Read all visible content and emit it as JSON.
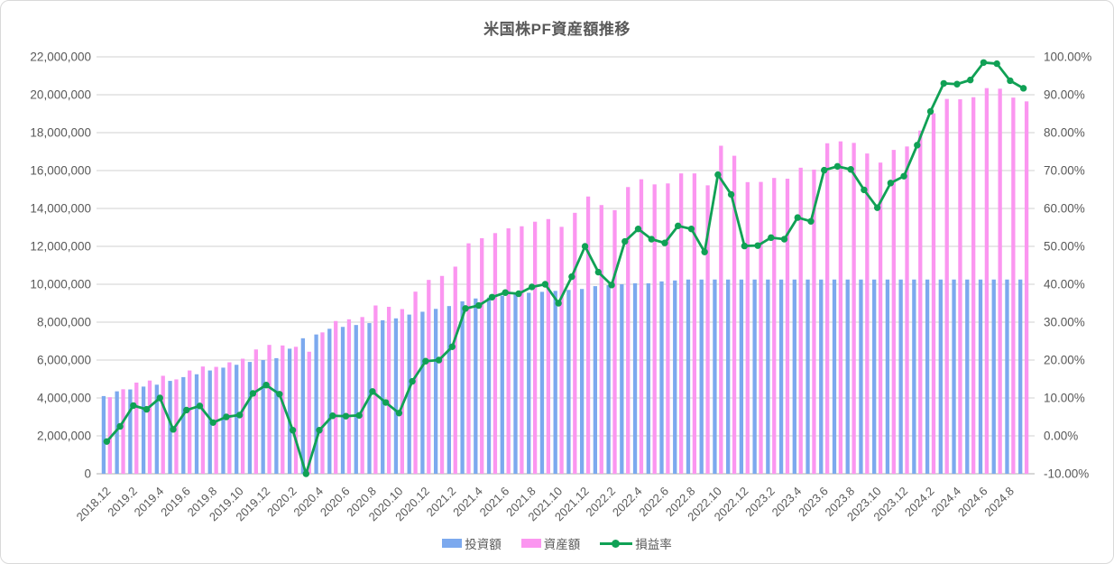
{
  "chart": {
    "title": "米国株PF資産額推移",
    "legend": {
      "invest": "投資額",
      "asset": "資産額",
      "rate": "損益率"
    }
  },
  "colors": {
    "invest_bar": "#7CA9EE",
    "asset_bar": "#FB96F0",
    "rate_line": "#10A155",
    "gridline": "#D9D9D9",
    "axis_line": "#BFBFBF",
    "tick_text": "#595959"
  },
  "chart_data": {
    "type": "combo: grouped bars + line on secondary axis",
    "title": "米国株PF資産額推移",
    "grid": true,
    "legend_position": "bottom",
    "categories": [
      "2018.12",
      "2019.1",
      "2019.2",
      "2019.3",
      "2019.4",
      "2019.5",
      "2019.6",
      "2019.7",
      "2019.8",
      "2019.9",
      "2019.10",
      "2019.11",
      "2019.12",
      "2020.1",
      "2020.2",
      "2020.3",
      "2020.4",
      "2020.5",
      "2020.6",
      "2020.7",
      "2020.8",
      "2020.9",
      "2020.10",
      "2020.11",
      "2020.12",
      "2021.1",
      "2021.2",
      "2021.3",
      "2021.4",
      "2021.5",
      "2021.6",
      "2021.7",
      "2021.8",
      "2021.9",
      "2021.10",
      "2021.11",
      "2021.12",
      "2022.1",
      "2022.2",
      "2022.3",
      "2022.4",
      "2022.5",
      "2022.6",
      "2022.7",
      "2022.8",
      "2022.9",
      "2022.10",
      "2022.11",
      "2022.12",
      "2023.1",
      "2023.2",
      "2023.3",
      "2023.4",
      "2023.5",
      "2023.6",
      "2023.7",
      "2023.8",
      "2023.9",
      "2023.10",
      "2023.11",
      "2023.12",
      "2024.1",
      "2024.2",
      "2024.3",
      "2024.4",
      "2024.5",
      "2024.6",
      "2024.7",
      "2024.8",
      "2024.9"
    ],
    "x_tick_labels": [
      "2018.12",
      "2019.2",
      "2019.4",
      "2019.6",
      "2019.8",
      "2019.10",
      "2019.12",
      "2020.2",
      "2020.4",
      "2020.6",
      "2020.8",
      "2020.10",
      "2020.12",
      "2021.2",
      "2021.4",
      "2021.6",
      "2021.8",
      "2021.10",
      "2021.12",
      "2022.2",
      "2022.4",
      "2022.6",
      "2022.8",
      "2022.10",
      "2022.12",
      "2023.2",
      "2023.4",
      "2023.6",
      "2023.8",
      "2023.10",
      "2023.12",
      "2024.2",
      "2024.4",
      "2024.6",
      "2024.8"
    ],
    "bar_series": [
      {
        "name": "投資額",
        "values": [
          4100000,
          4350000,
          4450000,
          4600000,
          4700000,
          4900000,
          5100000,
          5250000,
          5450000,
          5600000,
          5750000,
          5900000,
          6000000,
          6100000,
          6600000,
          7150000,
          7350000,
          7650000,
          7750000,
          7850000,
          7950000,
          8100000,
          8200000,
          8400000,
          8550000,
          8700000,
          8850000,
          9100000,
          9250000,
          9300000,
          9400000,
          9500000,
          9550000,
          9600000,
          9650000,
          9700000,
          9750000,
          9900000,
          9950000,
          10000000,
          10050000,
          10050000,
          10150000,
          10200000,
          10250000,
          10250000,
          10250000,
          10250000,
          10250000,
          10250000,
          10250000,
          10250000,
          10250000,
          10250000,
          10250000,
          10250000,
          10250000,
          10250000,
          10250000,
          10250000,
          10250000,
          10250000,
          10250000,
          10250000,
          10250000,
          10250000,
          10250000,
          10250000,
          10250000,
          10250000
        ]
      },
      {
        "name": "資産額",
        "values": [
          4040000,
          4460000,
          4810000,
          4920000,
          5170000,
          4980000,
          5450000,
          5660000,
          5640000,
          5880000,
          6070000,
          6560000,
          6800000,
          6770000,
          6700000,
          6440000,
          7460000,
          8060000,
          8150000,
          8270000,
          8880000,
          8810000,
          8690000,
          9610000,
          10230000,
          10440000,
          10930000,
          12160000,
          12430000,
          12700000,
          12950000,
          13060000,
          13300000,
          13440000,
          13030000,
          13770000,
          14630000,
          14180000,
          13910000,
          15130000,
          15540000,
          15270000,
          15320000,
          15850000,
          15850000,
          15220000,
          17310000,
          16780000,
          15390000,
          15400000,
          15610000,
          15570000,
          16150000,
          16050000,
          17440000,
          17540000,
          17460000,
          16900000,
          16420000,
          17090000,
          17270000,
          18110000,
          19020000,
          19780000,
          19760000,
          19870000,
          20350000,
          20320000,
          19850000,
          19650000
        ]
      }
    ],
    "line_series": [
      {
        "name": "損益率",
        "unit": "%",
        "values": [
          -1.5,
          2.5,
          8.0,
          7.0,
          10.0,
          1.7,
          6.8,
          7.9,
          3.5,
          5.0,
          5.5,
          11.2,
          13.4,
          11.0,
          1.5,
          -10.0,
          1.5,
          5.3,
          5.2,
          5.4,
          11.7,
          8.8,
          6.0,
          14.4,
          19.7,
          20.0,
          23.5,
          33.6,
          34.4,
          36.6,
          37.8,
          37.5,
          39.3,
          40.0,
          35.0,
          42.0,
          50.0,
          43.2,
          39.8,
          51.3,
          54.6,
          51.9,
          50.9,
          55.4,
          54.6,
          48.5,
          68.9,
          63.7,
          50.1,
          50.2,
          52.3,
          51.9,
          57.6,
          56.6,
          70.1,
          71.1,
          70.3,
          64.9,
          60.2,
          66.7,
          68.5,
          76.7,
          85.6,
          93.0,
          92.8,
          93.9,
          98.5,
          98.2,
          93.7,
          91.7
        ]
      }
    ],
    "left_axis": {
      "min": 0,
      "max": 22000000,
      "step": 2000000,
      "tick_labels": [
        "22,000,000",
        "20,000,000",
        "18,000,000",
        "16,000,000",
        "14,000,000",
        "12,000,000",
        "10,000,000",
        "8,000,000",
        "6,000,000",
        "4,000,000",
        "2,000,000",
        "0"
      ]
    },
    "right_axis": {
      "min": -10,
      "max": 100,
      "step": 10,
      "tick_labels": [
        "100.00%",
        "90.00%",
        "80.00%",
        "70.00%",
        "60.00%",
        "50.00%",
        "40.00%",
        "30.00%",
        "20.00%",
        "10.00%",
        "0.00%",
        "-10.00%"
      ]
    }
  }
}
